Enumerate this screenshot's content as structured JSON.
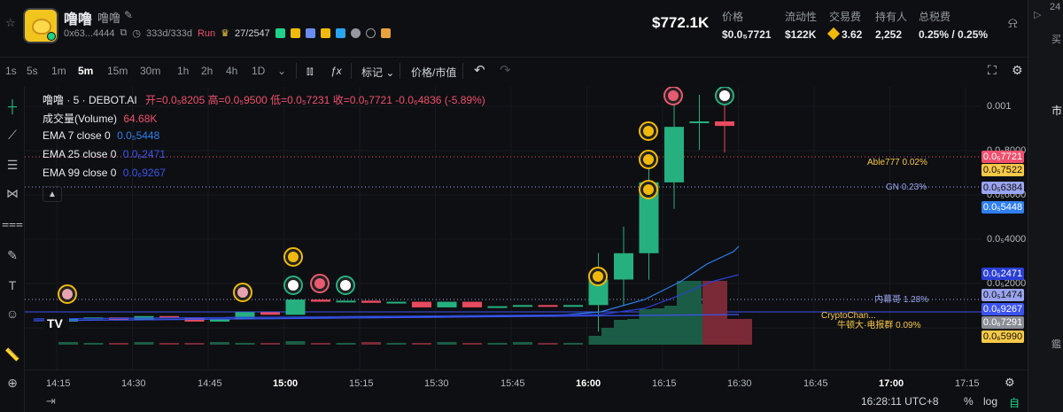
{
  "header": {
    "token_name": "噜噜",
    "token_sub": "噜噜",
    "address": "0x63...4444",
    "age": "333d/333d",
    "run_label": "Run",
    "crown_ratio": "27/2547",
    "market_cap": "$772.1K",
    "stats": [
      {
        "label": "价格",
        "value": "$0.0₅7721"
      },
      {
        "label": "流动性",
        "value": "$122K"
      },
      {
        "label": "交易费",
        "value": "3.62"
      },
      {
        "label": "持有人",
        "value": "2,252"
      },
      {
        "label": "总税费",
        "value": "0.25% / 0.25%"
      }
    ]
  },
  "toolbar": {
    "intervals": [
      "1s",
      "5s",
      "1m",
      "5m",
      "15m",
      "30m",
      "1h",
      "2h",
      "4h",
      "1D"
    ],
    "active_interval": "5m",
    "mark_label": "标记",
    "price_mcap_label": "价格/市值"
  },
  "legend": {
    "title": "噜噜 · 5 · DEBOT.AI",
    "ohlc": "开=0.0₅8205  高=0.0₅9500  低=0.0₅7231  收=0.0₅7721  -0.0₆4836 (-5.89%)",
    "volume_label": "成交量(Volume)",
    "volume_value": "64.68K",
    "ema7_label": "EMA 7 close 0",
    "ema7_value": "0.0₅5448",
    "ema25_label": "EMA 25 close 0",
    "ema25_value": "0.0₅2471",
    "ema99_label": "EMA 99 close 0",
    "ema99_value": "0.0₆9267"
  },
  "y_axis_labels": [
    "0.001",
    "0.0₅8000",
    "0.0₅6000",
    "0.0₅4000",
    "0.0₅2000"
  ],
  "price_tags": [
    {
      "text": "0.0₅7721",
      "color": "#f0506e"
    },
    {
      "text": "0.0₅7522",
      "color": "#f7c948"
    },
    {
      "text": "0.0₅6384",
      "color": "#9aa4f0"
    },
    {
      "text": "0.0₅5448",
      "color": "#2f7ff0"
    },
    {
      "text": "0.0₅2471",
      "color": "#2b3fd6"
    },
    {
      "text": "0.0₅1474",
      "color": "#9aa4f0"
    },
    {
      "text": "0.0₆9267",
      "color": "#3d53f0"
    },
    {
      "text": "0.0₆7291",
      "color": "#8a8d96"
    },
    {
      "text": "0.0₆5990",
      "color": "#f7c948"
    }
  ],
  "annotations": [
    {
      "text": "Able777 0.02%",
      "color": "#f7c948"
    },
    {
      "text": "GN 0.23%",
      "color": "#9aa4f0"
    },
    {
      "text": "内幕哥 1.28%",
      "color": "#9aa4f0"
    },
    {
      "text": "CryptoChan...",
      "color": "#f7c948"
    },
    {
      "text": "牛顿大·电报群 0.09%",
      "color": "#f7c948"
    }
  ],
  "time_labels": [
    "14:15",
    "14:30",
    "14:45",
    "15:00",
    "15:15",
    "15:30",
    "15:45",
    "16:00",
    "16:15",
    "16:30",
    "16:45",
    "17:00",
    "17:15"
  ],
  "bold_times": [
    "15:00",
    "16:00",
    "17:00"
  ],
  "clock": "16:28:11 UTC+8",
  "bottom_buttons": {
    "percent": "%",
    "log": "log",
    "auto": "自动"
  },
  "right_strip": {
    "top": "24",
    "mid": "市",
    "buy": "买",
    "cn": "鑑"
  },
  "chart_data": {
    "type": "candlestick",
    "interval": "5m",
    "candles": [
      {
        "t": "14:15",
        "o": 5e-07,
        "c": 5.2e-07
      },
      {
        "t": "14:20",
        "o": 5.2e-07,
        "c": 5.3e-07
      },
      {
        "t": "14:25",
        "o": 5.3e-07,
        "c": 5.1e-07
      },
      {
        "t": "14:30",
        "o": 5.1e-07,
        "c": 5.4e-07
      },
      {
        "t": "14:35",
        "o": 5.4e-07,
        "c": 5.3e-07
      },
      {
        "t": "14:40",
        "o": 5.3e-07,
        "c": 5e-07
      },
      {
        "t": "14:45",
        "o": 5e-07,
        "c": 5.2e-07
      },
      {
        "t": "14:50",
        "o": 5.2e-07,
        "c": 5.7e-07
      },
      {
        "t": "14:55",
        "o": 5.7e-07,
        "c": 5.5e-07
      },
      {
        "t": "15:00",
        "o": 5.5e-07,
        "c": 6.8e-07
      },
      {
        "t": "15:05",
        "o": 6.8e-07,
        "c": 6.6e-07
      },
      {
        "t": "15:10",
        "o": 6.6e-07,
        "c": 6.7e-07
      },
      {
        "t": "15:15",
        "o": 6.7e-07,
        "c": 6.5e-07
      },
      {
        "t": "15:20",
        "o": 6.5e-07,
        "c": 6.6e-07
      },
      {
        "t": "15:25",
        "o": 6.6e-07,
        "c": 6.1e-07
      },
      {
        "t": "15:30",
        "o": 6.1e-07,
        "c": 6.6e-07
      },
      {
        "t": "15:35",
        "o": 6.6e-07,
        "c": 6.1e-07
      },
      {
        "t": "15:40",
        "o": 6.1e-07,
        "c": 6.2e-07
      },
      {
        "t": "15:45",
        "o": 6.2e-07,
        "c": 6.3e-07
      },
      {
        "t": "15:50",
        "o": 6.3e-07,
        "c": 6.2e-07
      },
      {
        "t": "15:55",
        "o": 6.2e-07,
        "c": 6.3e-07
      },
      {
        "t": "16:00",
        "o": 6.3e-07,
        "c": 9e-07
      },
      {
        "t": "16:05",
        "o": 9e-07,
        "c": 1.3e-06
      },
      {
        "t": "16:10",
        "o": 1.3e-06,
        "c": 3.5e-06
      },
      {
        "t": "16:15",
        "o": 3.5e-06,
        "c": 7.6e-06
      },
      {
        "t": "16:20",
        "o": 8.2e-06,
        "c": 8.2e-06
      },
      {
        "t": "16:25",
        "o": 8.2e-06,
        "c": 7.7e-06
      }
    ]
  }
}
